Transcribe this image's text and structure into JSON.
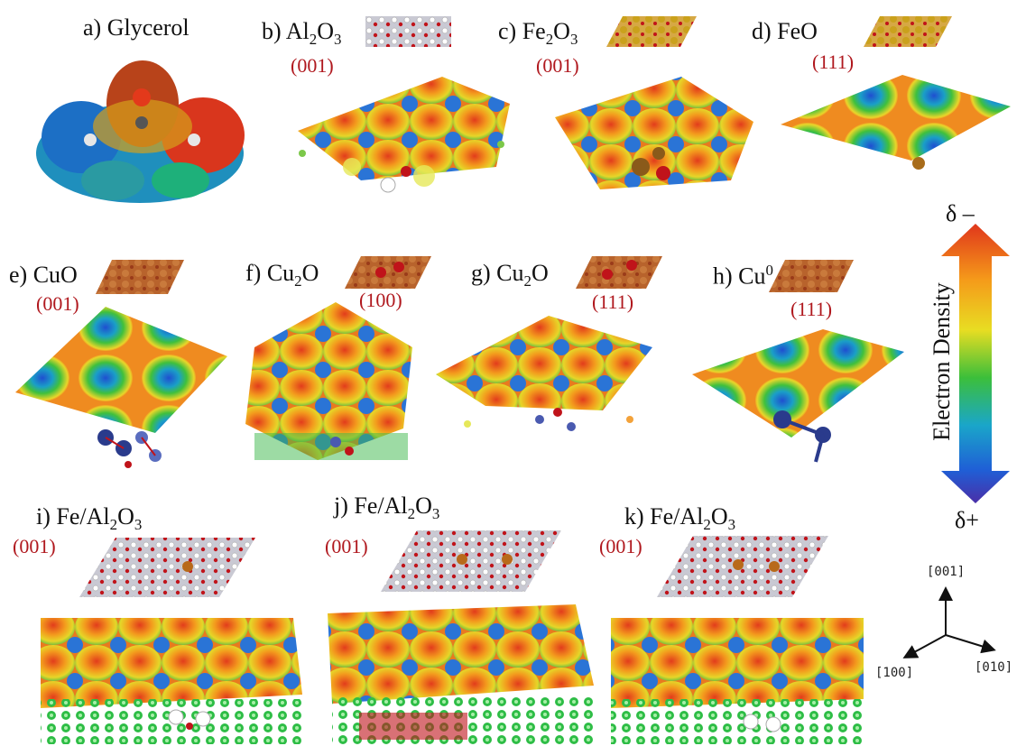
{
  "panels": {
    "a": {
      "label": "a) Glycerol"
    },
    "b": {
      "prefix": "b) Al",
      "s1": "2",
      "mid": "O",
      "s2": "3",
      "miller": "(001)"
    },
    "c": {
      "prefix": "c) Fe",
      "s1": "2",
      "mid": "O",
      "s2": "3",
      "miller": "(001)"
    },
    "d": {
      "label": "d) FeO",
      "miller": "(111)"
    },
    "e": {
      "label": "e) CuO",
      "miller": "(001)"
    },
    "f": {
      "prefix": "f) Cu",
      "s1": "2",
      "mid": "O",
      "miller": "(100)"
    },
    "g": {
      "prefix": "g) Cu",
      "s1": "2",
      "mid": "O",
      "miller": "(111)"
    },
    "h": {
      "prefix": "h) Cu",
      "sup": "0",
      "miller": "(111)"
    },
    "i": {
      "prefix": "i) Fe/Al",
      "s1": "2",
      "mid": "O",
      "s2": "3",
      "miller": "(001)"
    },
    "j": {
      "prefix": "j) Fe/Al",
      "s1": "2",
      "mid": "O",
      "s2": "3",
      "miller": "(001)"
    },
    "k": {
      "prefix": "k) Fe/Al",
      "s1": "2",
      "mid": "O",
      "s2": "3",
      "miller": "(001)"
    }
  },
  "colorbar": {
    "top": "δ –",
    "bottom": "δ+",
    "title": "Electron Density"
  },
  "axes": {
    "z": "[001]",
    "x": "[100]",
    "y": "[010]"
  }
}
